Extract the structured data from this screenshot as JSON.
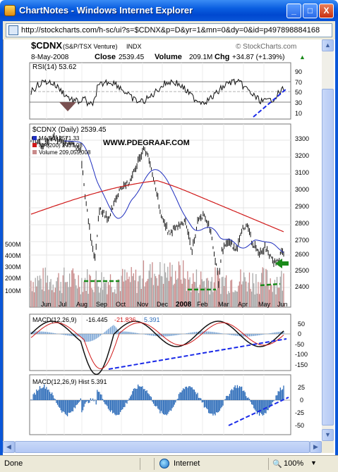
{
  "window": {
    "title": "ChartNotes - Windows Internet Explorer",
    "minimize": "_",
    "maximize": "□",
    "close": "X"
  },
  "address": {
    "url": "http://stockcharts.com/h-sc/ui?s=$CDNX&p=D&yr=1&mn=0&dy=0&id=p497898884168"
  },
  "header": {
    "symbol": "$CDNX",
    "name": "(S&P/TSX Venture)",
    "exchange": "INDX",
    "brand": "© StockCharts.com",
    "date": "8-May-2008",
    "close_label": "Close",
    "close_value": "2539.45",
    "volume_label": "Volume",
    "volume_value": "209.1M",
    "chg_label": "Chg",
    "chg_value": "+34.87 (+1.39%)",
    "chg_arrow": "▲"
  },
  "rsi": {
    "label": "RSI(14) 53.62",
    "ticks": [
      "90",
      "70",
      "50",
      "30",
      "10"
    ]
  },
  "price": {
    "label": "$CDNX (Daily) 2539.45",
    "ma50": "MA(50) 2571.33",
    "ma200": "MA(200) 2737.08",
    "volume": "Volume 209,055,008",
    "watermark": "WWW.PDEGRAAF.COM",
    "y_ticks": [
      "3300",
      "3200",
      "3100",
      "3000",
      "2900",
      "2800",
      "2700",
      "2600",
      "2500",
      "2400"
    ],
    "vol_ticks": [
      "500M",
      "400M",
      "300M",
      "200M",
      "100M"
    ],
    "months": [
      "Jun",
      "Jul",
      "Aug",
      "Sep",
      "Oct",
      "Nov",
      "Dec",
      "2008",
      "Feb",
      "Mar",
      "Apr",
      "May",
      "Jun"
    ]
  },
  "macd": {
    "label_a": "MACD(12,26,9)",
    "v1": "-16.445",
    "v2": "-21.836",
    "v3": "5.391",
    "ticks": [
      "50",
      "0",
      "-50",
      "-100",
      "-150"
    ]
  },
  "hist": {
    "label": "MACD(12,26,9) Hist 5.391",
    "ticks": [
      "25",
      "0",
      "-25",
      "-50"
    ]
  },
  "status": {
    "left": "Done",
    "zone": "Internet",
    "zoom": "100%"
  },
  "colors": {
    "ma50": "#1f2fbf",
    "ma200": "#d01818",
    "annotation": "#1a2ae8",
    "support": "#1a8a1a",
    "rsi_fill": "#7a5050"
  }
}
